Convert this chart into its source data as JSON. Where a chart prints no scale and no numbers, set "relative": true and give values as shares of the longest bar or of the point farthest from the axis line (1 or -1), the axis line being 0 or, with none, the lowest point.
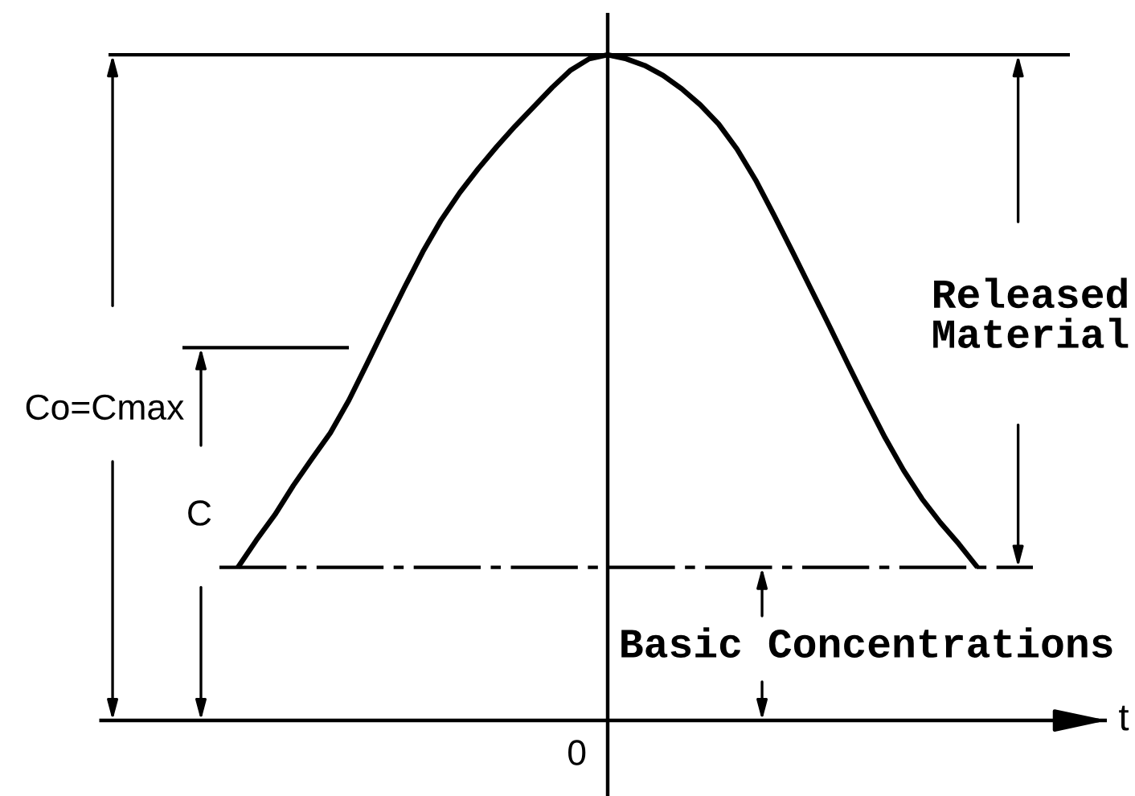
{
  "chart_data": {
    "type": "line",
    "relative": true,
    "xlabel": "t",
    "marker": "none",
    "categories": [
      null,
      null,
      null,
      null,
      null,
      null,
      null,
      null,
      null,
      null,
      null,
      null,
      null,
      null,
      null,
      null,
      null,
      null,
      null,
      null,
      null,
      null,
      null,
      null,
      null,
      null,
      null,
      null,
      null,
      null,
      null,
      null,
      null,
      null,
      null,
      null,
      null,
      null,
      null,
      null,
      null,
      null,
      null,
      null,
      null,
      null,
      null,
      null,
      null,
      null,
      null,
      null,
      null,
      null,
      null
    ],
    "series": [
      {
        "color": "#000000",
        "line_style": "solid",
        "values": [
          null,
          null,
          null,
          null,
          null,
          null,
          null,
          0.23,
          0.271,
          0.309,
          0.353,
          0.393,
          0.432,
          0.481,
          0.537,
          0.594,
          0.65,
          0.704,
          0.752,
          0.793,
          0.829,
          0.862,
          0.893,
          0.922,
          0.951,
          0.977,
          0.994,
          1,
          0.994,
          0.984,
          0.969,
          0.949,
          0.925,
          0.896,
          0.858,
          0.812,
          0.759,
          0.704,
          0.648,
          0.592,
          0.535,
          0.479,
          0.425,
          0.376,
          0.333,
          0.297,
          0.265,
          0.23,
          null,
          null,
          null,
          null,
          null,
          null,
          null
        ]
      },
      {
        "color": "#000000",
        "line_style": "solid",
        "values": [
          1,
          1,
          1,
          1,
          1,
          1,
          1,
          1,
          1,
          1,
          1,
          1,
          1,
          1,
          1,
          1,
          1,
          1,
          1,
          1,
          1,
          1,
          1,
          1,
          1,
          1,
          1,
          1,
          1,
          1,
          1,
          1,
          1,
          1,
          1,
          1,
          1,
          1,
          1,
          1,
          1,
          1,
          1,
          1,
          1,
          1,
          1,
          1,
          1,
          1,
          1,
          1,
          1,
          null,
          null
        ]
      },
      {
        "color": "#000000",
        "line_style": "solid",
        "values": [
          null,
          null,
          null,
          null,
          0.56,
          0.56,
          0.56,
          0.56,
          0.56,
          0.56,
          0.56,
          0.56,
          0.56,
          0.56,
          null,
          null,
          null,
          null,
          null,
          null,
          null,
          null,
          null,
          null,
          null,
          null,
          null,
          null,
          null,
          null,
          null,
          null,
          null,
          null,
          null,
          null,
          null,
          null,
          null,
          null,
          null,
          null,
          null,
          null,
          null,
          null,
          null,
          null,
          null,
          null,
          null,
          null,
          null,
          null,
          null
        ]
      },
      {
        "color": "#000000",
        "line_style": "dashdot",
        "values": [
          null,
          null,
          null,
          null,
          null,
          null,
          0.23,
          0.23,
          0.23,
          0.23,
          0.23,
          0.23,
          0.23,
          0.23,
          0.23,
          0.23,
          0.23,
          0.23,
          0.23,
          0.23,
          0.23,
          0.23,
          0.23,
          0.23,
          0.23,
          0.23,
          0.23,
          0.23,
          0.23,
          0.23,
          0.23,
          0.23,
          0.23,
          0.23,
          0.23,
          0.23,
          0.23,
          0.23,
          0.23,
          0.23,
          0.23,
          0.23,
          0.23,
          0.23,
          0.23,
          0.23,
          0.23,
          0.23,
          0.23,
          0.23,
          0.23,
          null,
          null,
          null,
          null
        ]
      }
    ],
    "annotations": [
      "Co=Cmax",
      "C",
      "Released\nMaterial",
      "Basic Concentrations",
      "0"
    ]
  }
}
